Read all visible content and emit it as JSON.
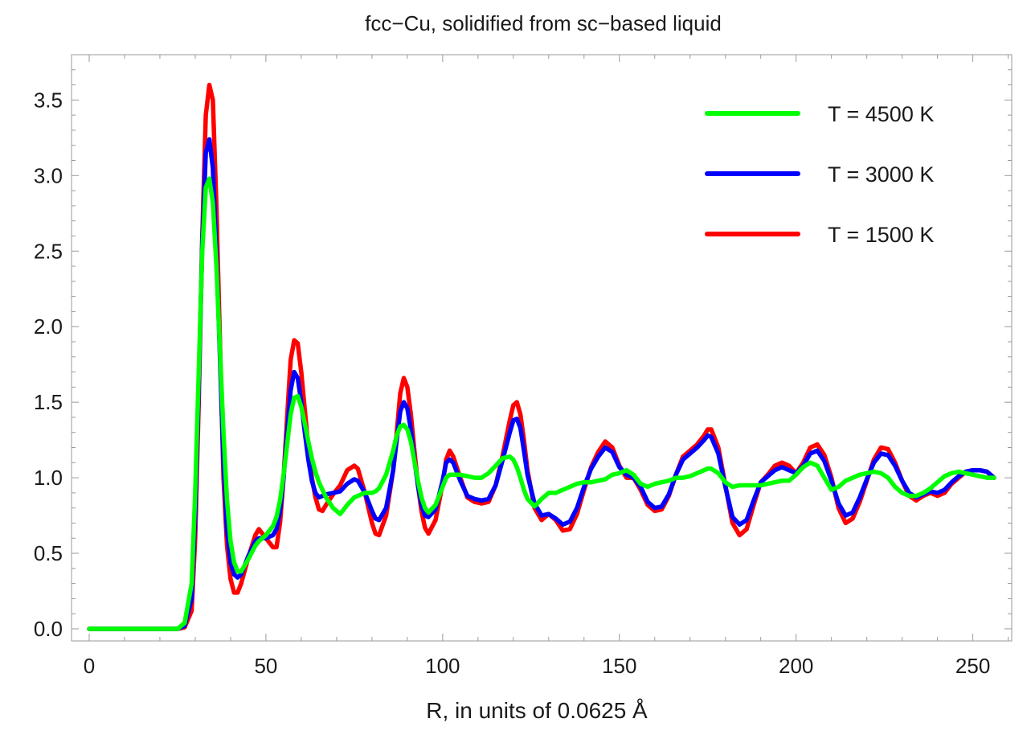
{
  "chart_data": {
    "type": "line",
    "title": "fcc−Cu, solidified from sc−based liquid",
    "xlabel": "R, in units of 0.0625 Å",
    "ylabel": "",
    "xlim": [
      -5,
      261
    ],
    "ylim": [
      -0.08,
      3.8
    ],
    "xticks": [
      0,
      50,
      100,
      150,
      200,
      250
    ],
    "xtick_labels": [
      "0",
      "50",
      "100",
      "150",
      "200",
      "250"
    ],
    "yticks": [
      0.0,
      0.5,
      1.0,
      1.5,
      2.0,
      2.5,
      3.0,
      3.5
    ],
    "ytick_labels": [
      "0.0",
      "0.5",
      "1.0",
      "1.5",
      "2.0",
      "2.5",
      "3.0",
      "3.5"
    ],
    "grid": false,
    "legend_position": "top-right",
    "series": [
      {
        "name": "T = 1500 K",
        "color": "#ff0000",
        "x": [
          0,
          10,
          20,
          25,
          27,
          29,
          30,
          31,
          32,
          33,
          34,
          35,
          36,
          37,
          38,
          39,
          40,
          41,
          42,
          43,
          45,
          47,
          48,
          50,
          52,
          53,
          54,
          55,
          56,
          57,
          58,
          59,
          60,
          61,
          62,
          63,
          64,
          65,
          66,
          67,
          69,
          71,
          73,
          75,
          76,
          78,
          80,
          81,
          82,
          84,
          86,
          87,
          88,
          89,
          90,
          91,
          92,
          93,
          94,
          95,
          96,
          98,
          100,
          101,
          102,
          103,
          105,
          107,
          109,
          111,
          113,
          115,
          117,
          119,
          120,
          121,
          122,
          123,
          124,
          126,
          128,
          130,
          132,
          134,
          136,
          138,
          140,
          142,
          144,
          146,
          148,
          150,
          152,
          154,
          156,
          158,
          160,
          162,
          164,
          166,
          168,
          170,
          172,
          174,
          175,
          176,
          178,
          180,
          182,
          184,
          186,
          188,
          190,
          192,
          194,
          196,
          198,
          200,
          202,
          204,
          206,
          208,
          210,
          212,
          214,
          216,
          218,
          220,
          222,
          224,
          226,
          228,
          230,
          232,
          234,
          236,
          238,
          240,
          242,
          244,
          246,
          248,
          250,
          252,
          254,
          256
        ],
        "y": [
          0,
          0,
          0,
          0,
          0.01,
          0.12,
          0.6,
          1.5,
          2.6,
          3.4,
          3.6,
          3.5,
          2.8,
          1.9,
          1.0,
          0.55,
          0.33,
          0.24,
          0.24,
          0.3,
          0.47,
          0.62,
          0.66,
          0.6,
          0.54,
          0.54,
          0.7,
          1.0,
          1.4,
          1.78,
          1.91,
          1.89,
          1.7,
          1.45,
          1.2,
          1.0,
          0.87,
          0.79,
          0.78,
          0.82,
          0.89,
          0.95,
          1.05,
          1.08,
          1.06,
          0.9,
          0.7,
          0.63,
          0.62,
          0.75,
          1.05,
          1.3,
          1.56,
          1.66,
          1.6,
          1.42,
          1.18,
          0.95,
          0.78,
          0.67,
          0.63,
          0.72,
          0.96,
          1.12,
          1.18,
          1.14,
          1.0,
          0.87,
          0.84,
          0.83,
          0.84,
          0.95,
          1.15,
          1.38,
          1.48,
          1.5,
          1.42,
          1.25,
          1.05,
          0.8,
          0.72,
          0.76,
          0.72,
          0.65,
          0.66,
          0.76,
          0.92,
          1.07,
          1.17,
          1.24,
          1.2,
          1.08,
          1.0,
          1.0,
          0.92,
          0.82,
          0.78,
          0.79,
          0.88,
          1.02,
          1.14,
          1.18,
          1.22,
          1.28,
          1.32,
          1.32,
          1.2,
          0.95,
          0.7,
          0.62,
          0.66,
          0.82,
          0.97,
          1.02,
          1.08,
          1.1,
          1.08,
          1.03,
          1.1,
          1.2,
          1.22,
          1.15,
          1.0,
          0.8,
          0.7,
          0.73,
          0.84,
          0.98,
          1.12,
          1.2,
          1.19,
          1.1,
          0.98,
          0.88,
          0.85,
          0.88,
          0.9,
          0.88,
          0.9,
          0.96,
          1.0,
          1.04,
          1.05,
          1.05,
          1.04,
          1.0
        ]
      },
      {
        "name": "T = 3000 K",
        "color": "#0000ff",
        "x": [
          0,
          10,
          20,
          25,
          27,
          29,
          30,
          31,
          32,
          33,
          34,
          35,
          36,
          37,
          38,
          39,
          40,
          41,
          42,
          43,
          45,
          47,
          48,
          50,
          52,
          53,
          54,
          55,
          56,
          57,
          58,
          59,
          60,
          61,
          62,
          63,
          64,
          65,
          66,
          67,
          69,
          71,
          73,
          75,
          76,
          78,
          80,
          81,
          82,
          84,
          86,
          87,
          88,
          89,
          90,
          91,
          92,
          93,
          94,
          95,
          96,
          98,
          100,
          101,
          102,
          103,
          105,
          107,
          109,
          111,
          113,
          115,
          117,
          119,
          120,
          121,
          122,
          123,
          124,
          126,
          128,
          130,
          132,
          134,
          136,
          138,
          140,
          142,
          144,
          146,
          148,
          150,
          152,
          154,
          156,
          158,
          160,
          162,
          164,
          166,
          168,
          170,
          172,
          174,
          175,
          176,
          178,
          180,
          182,
          184,
          186,
          188,
          190,
          192,
          194,
          196,
          198,
          200,
          202,
          204,
          206,
          208,
          210,
          212,
          214,
          216,
          218,
          220,
          222,
          224,
          226,
          228,
          230,
          232,
          234,
          236,
          238,
          240,
          242,
          244,
          246,
          248,
          250,
          252,
          254,
          256
        ],
        "y": [
          0,
          0,
          0,
          0,
          0.02,
          0.2,
          0.75,
          1.6,
          2.55,
          3.15,
          3.24,
          3.05,
          2.5,
          1.8,
          1.1,
          0.65,
          0.44,
          0.36,
          0.34,
          0.36,
          0.48,
          0.58,
          0.6,
          0.6,
          0.62,
          0.66,
          0.78,
          1.0,
          1.3,
          1.58,
          1.7,
          1.66,
          1.5,
          1.3,
          1.12,
          0.98,
          0.9,
          0.87,
          0.88,
          0.89,
          0.9,
          0.91,
          0.96,
          0.99,
          0.98,
          0.9,
          0.78,
          0.73,
          0.72,
          0.8,
          1.05,
          1.25,
          1.44,
          1.5,
          1.46,
          1.32,
          1.12,
          0.95,
          0.82,
          0.75,
          0.74,
          0.79,
          0.98,
          1.1,
          1.12,
          1.1,
          0.98,
          0.88,
          0.86,
          0.85,
          0.86,
          0.95,
          1.12,
          1.3,
          1.38,
          1.39,
          1.33,
          1.18,
          1.02,
          0.83,
          0.75,
          0.76,
          0.73,
          0.69,
          0.71,
          0.8,
          0.94,
          1.06,
          1.14,
          1.2,
          1.17,
          1.07,
          1.02,
          1.0,
          0.94,
          0.84,
          0.8,
          0.81,
          0.89,
          1.02,
          1.12,
          1.16,
          1.2,
          1.25,
          1.28,
          1.27,
          1.16,
          0.94,
          0.74,
          0.69,
          0.72,
          0.85,
          0.97,
          1.01,
          1.05,
          1.07,
          1.05,
          1.03,
          1.08,
          1.16,
          1.18,
          1.11,
          0.98,
          0.83,
          0.75,
          0.77,
          0.87,
          0.99,
          1.1,
          1.16,
          1.15,
          1.08,
          0.98,
          0.9,
          0.87,
          0.89,
          0.91,
          0.9,
          0.92,
          0.97,
          1.01,
          1.04,
          1.05,
          1.05,
          1.04,
          1.0
        ]
      },
      {
        "name": "T = 4500 K",
        "color": "#00ff00",
        "x": [
          0,
          10,
          20,
          25,
          27,
          29,
          30,
          31,
          32,
          33,
          34,
          35,
          36,
          37,
          38,
          39,
          40,
          41,
          42,
          43,
          45,
          47,
          48,
          50,
          52,
          53,
          54,
          55,
          56,
          57,
          58,
          59,
          60,
          61,
          62,
          63,
          64,
          65,
          66,
          67,
          69,
          71,
          73,
          75,
          76,
          78,
          80,
          81,
          82,
          84,
          86,
          87,
          88,
          89,
          90,
          91,
          92,
          93,
          94,
          95,
          96,
          98,
          100,
          101,
          102,
          103,
          105,
          107,
          109,
          111,
          113,
          115,
          117,
          119,
          120,
          121,
          122,
          123,
          124,
          126,
          128,
          130,
          132,
          134,
          136,
          138,
          140,
          142,
          144,
          146,
          148,
          150,
          152,
          154,
          156,
          158,
          160,
          162,
          164,
          166,
          168,
          170,
          172,
          174,
          175,
          176,
          178,
          180,
          182,
          184,
          186,
          188,
          190,
          192,
          194,
          196,
          198,
          200,
          202,
          204,
          206,
          208,
          210,
          212,
          214,
          216,
          218,
          220,
          222,
          224,
          226,
          228,
          230,
          232,
          234,
          236,
          238,
          240,
          242,
          244,
          246,
          248,
          250,
          252,
          254,
          256
        ],
        "y": [
          0,
          0,
          0,
          0,
          0.04,
          0.3,
          0.9,
          1.7,
          2.5,
          2.92,
          2.98,
          2.82,
          2.4,
          1.85,
          1.3,
          0.85,
          0.58,
          0.44,
          0.38,
          0.38,
          0.46,
          0.55,
          0.58,
          0.62,
          0.68,
          0.74,
          0.85,
          1.02,
          1.22,
          1.42,
          1.53,
          1.54,
          1.47,
          1.36,
          1.24,
          1.13,
          1.04,
          0.97,
          0.92,
          0.87,
          0.8,
          0.76,
          0.82,
          0.87,
          0.88,
          0.9,
          0.9,
          0.91,
          0.93,
          1.02,
          1.18,
          1.28,
          1.34,
          1.35,
          1.32,
          1.24,
          1.11,
          0.98,
          0.87,
          0.8,
          0.77,
          0.82,
          0.94,
          1.0,
          1.02,
          1.02,
          1.02,
          1.01,
          1.0,
          1.0,
          1.03,
          1.08,
          1.13,
          1.14,
          1.12,
          1.07,
          1.0,
          0.92,
          0.86,
          0.81,
          0.86,
          0.9,
          0.9,
          0.92,
          0.94,
          0.96,
          0.97,
          0.97,
          0.98,
          0.99,
          1.02,
          1.03,
          1.05,
          1.02,
          0.96,
          0.94,
          0.96,
          0.97,
          0.98,
          1.0,
          1.0,
          1.01,
          1.03,
          1.05,
          1.06,
          1.06,
          1.03,
          0.97,
          0.94,
          0.95,
          0.95,
          0.95,
          0.95,
          0.96,
          0.97,
          0.98,
          0.98,
          1.02,
          1.07,
          1.1,
          1.08,
          1.0,
          0.92,
          0.94,
          0.98,
          1.0,
          1.02,
          1.03,
          1.04,
          1.03,
          1.0,
          0.94,
          0.9,
          0.88,
          0.88,
          0.9,
          0.93,
          0.97,
          1.01,
          1.03,
          1.04,
          1.03,
          1.02,
          1.01,
          1.0,
          1.0
        ]
      }
    ],
    "legend": [
      {
        "label": "T = 4500 K",
        "color": "#00ff00"
      },
      {
        "label": "T = 3000 K",
        "color": "#0000ff"
      },
      {
        "label": "T = 1500 K",
        "color": "#ff0000"
      }
    ]
  }
}
